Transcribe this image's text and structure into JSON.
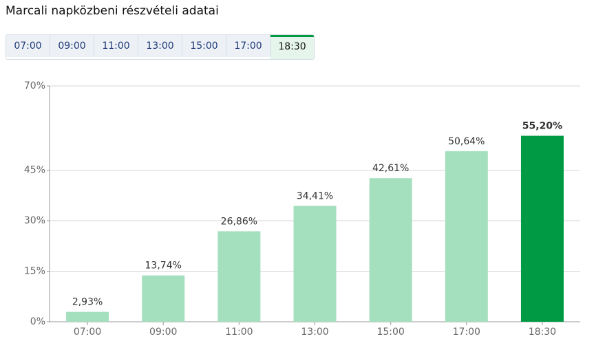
{
  "header": {
    "title": "Marcali napközbeni részvételi adatai"
  },
  "tabs": {
    "items": [
      "07:00",
      "09:00",
      "11:00",
      "13:00",
      "15:00",
      "17:00",
      "18:30"
    ],
    "active": 6
  },
  "chart_data": {
    "type": "bar",
    "categories": [
      "07:00",
      "09:00",
      "11:00",
      "13:00",
      "15:00",
      "17:00",
      "18:30"
    ],
    "values": [
      2.93,
      13.74,
      26.86,
      34.41,
      42.61,
      50.64,
      55.2
    ],
    "value_labels": [
      "2,93%",
      "13,74%",
      "26,86%",
      "34,41%",
      "42,61%",
      "50,64%",
      "55,20%"
    ],
    "colors": [
      "#a4dfbe",
      "#a4dfbe",
      "#a4dfbe",
      "#a4dfbe",
      "#a4dfbe",
      "#a4dfbe",
      "#009a44"
    ],
    "ylim": [
      0,
      70
    ],
    "yticks": [
      {
        "value": 0,
        "label": "0%"
      },
      {
        "value": 15,
        "label": "15%"
      },
      {
        "value": 30,
        "label": "30%"
      },
      {
        "value": 45,
        "label": "45%"
      },
      {
        "value": 70,
        "label": "70%"
      }
    ],
    "grid": true
  }
}
